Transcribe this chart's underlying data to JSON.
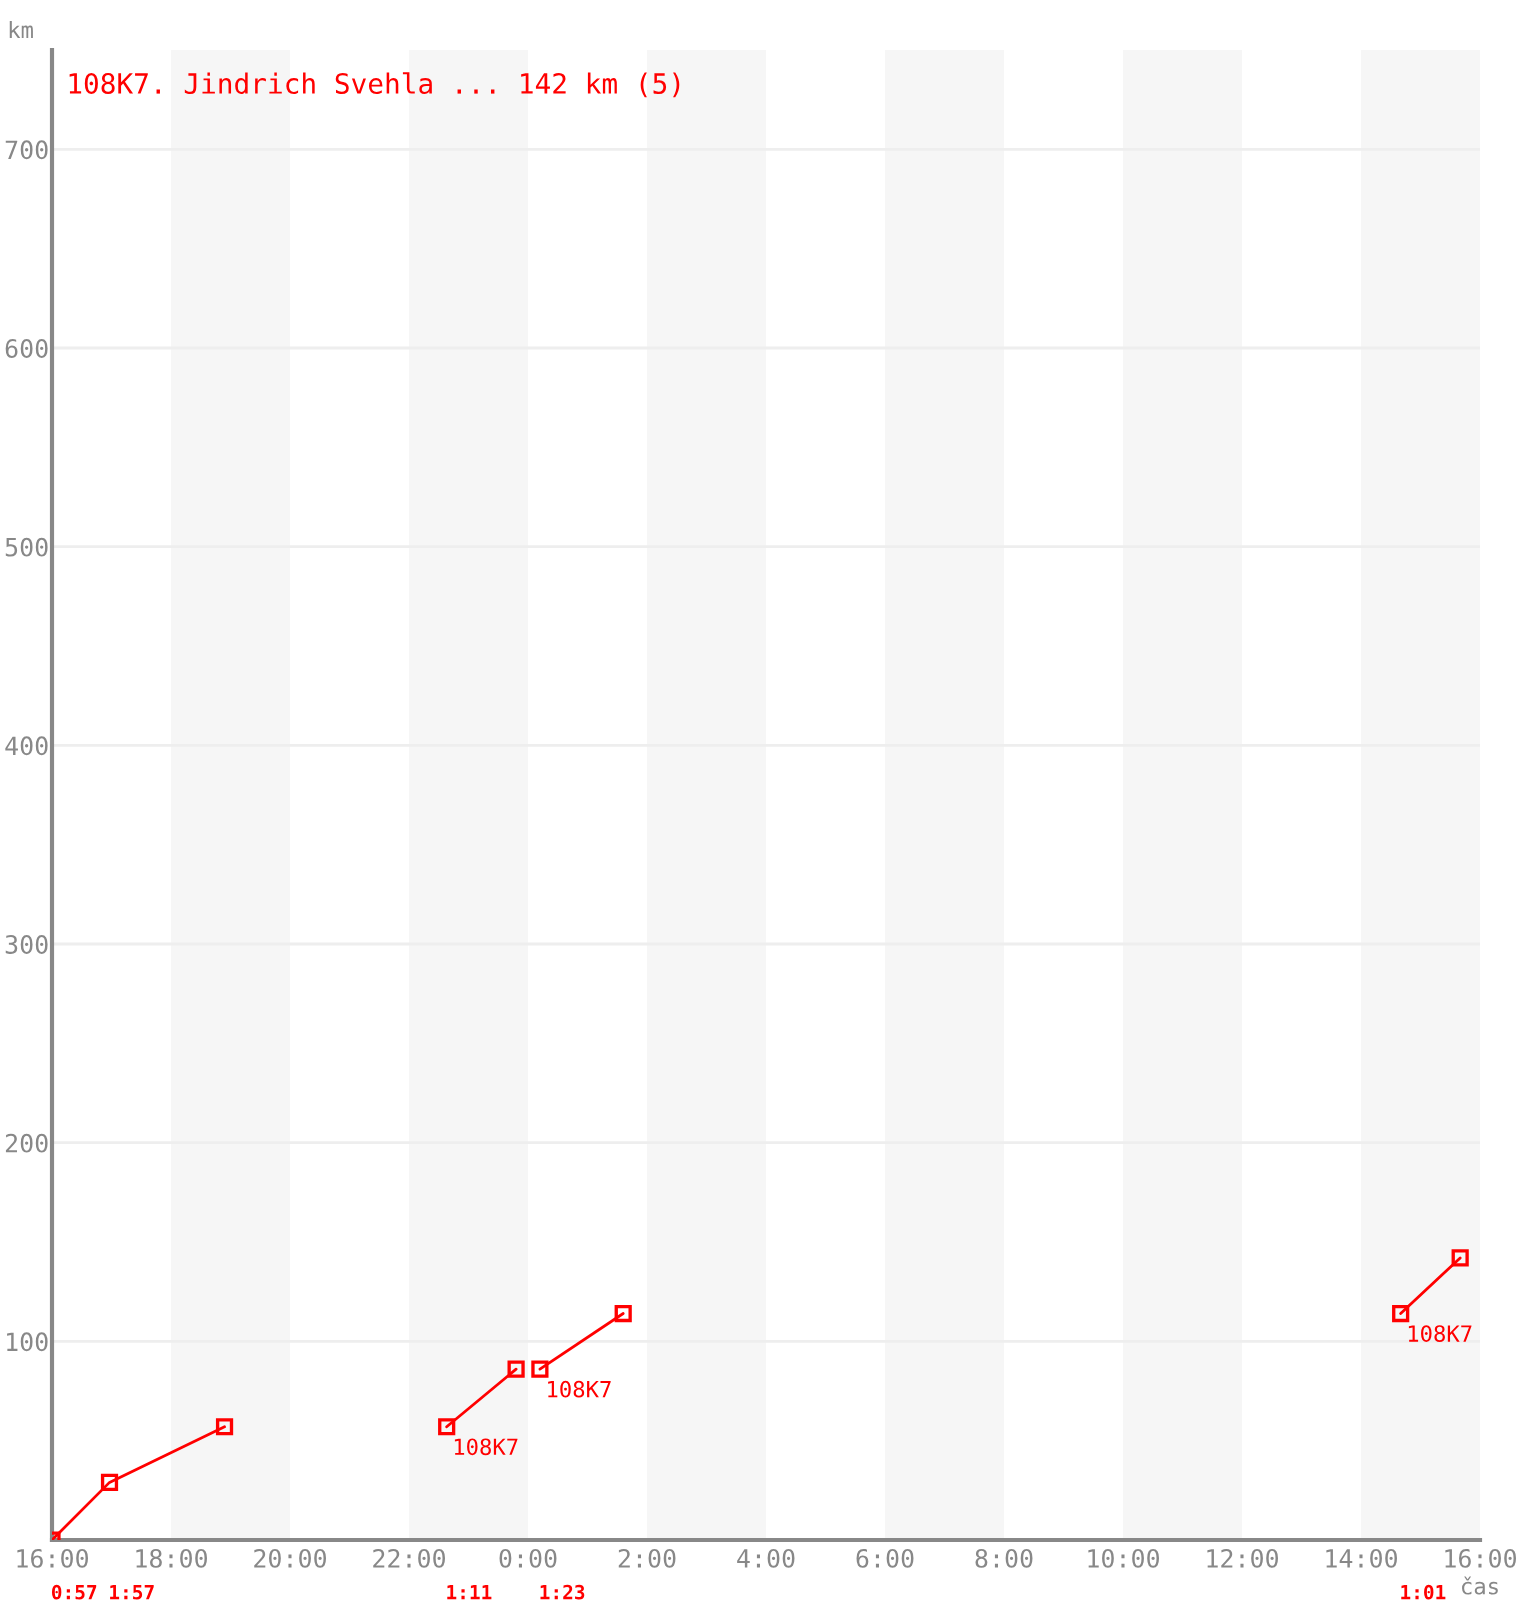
{
  "chart_data": {
    "type": "line",
    "title": "108K7. Jindrich Svehla ... 142 km (5)",
    "xlabel": "čas",
    "ylabel": "km",
    "series": [
      {
        "color": "#ff0000",
        "x": [
          "2000-01-01T16:00",
          "2000-01-01T16:58",
          "2000-01-01T18:54"
        ],
        "values": [
          0,
          29,
          57
        ]
      },
      {
        "color": "#ff0000",
        "x": [
          "2000-01-01T22:38",
          "2000-01-01T23:48"
        ],
        "values": [
          57,
          86
        ]
      },
      {
        "color": "#ff0000",
        "x": [
          "2000-01-02T00:12",
          "2000-01-02T01:36"
        ],
        "values": [
          86,
          114
        ]
      },
      {
        "color": "#ff0000",
        "x": [
          "2000-01-02T14:40",
          "2000-01-02T15:40"
        ],
        "values": [
          114,
          142
        ]
      }
    ],
    "marker": "square",
    "line_style": "solid",
    "grid": "y",
    "legend": false,
    "xlim": [
      "2000-01-01T16:00",
      "2000-01-02T16:00"
    ],
    "xticks": [
      {
        "value": "2000-01-01T16:00",
        "label": "16:00"
      },
      {
        "value": "2000-01-01T18:00",
        "label": "18:00"
      },
      {
        "value": "2000-01-01T20:00",
        "label": "20:00"
      },
      {
        "value": "2000-01-01T22:00",
        "label": "22:00"
      },
      {
        "value": "2000-01-02T00:00",
        "label": "0:00"
      },
      {
        "value": "2000-01-02T02:00",
        "label": "2:00"
      },
      {
        "value": "2000-01-02T04:00",
        "label": "4:00"
      },
      {
        "value": "2000-01-02T06:00",
        "label": "6:00"
      },
      {
        "value": "2000-01-02T08:00",
        "label": "8:00"
      },
      {
        "value": "2000-01-02T10:00",
        "label": "10:00"
      },
      {
        "value": "2000-01-02T12:00",
        "label": "12:00"
      },
      {
        "value": "2000-01-02T14:00",
        "label": "14:00"
      },
      {
        "value": "2000-01-02T16:00",
        "label": "16:00"
      }
    ],
    "ylim": [
      0,
      750
    ],
    "yticks": [
      100,
      200,
      300,
      400,
      500,
      600,
      700
    ],
    "bands": [
      {
        "axis": "x",
        "from": "2000-01-01T18:00",
        "to": "2000-01-01T20:00",
        "color": "#f6f6f6"
      },
      {
        "axis": "x",
        "from": "2000-01-01T22:00",
        "to": "2000-01-02T00:00",
        "color": "#f6f6f6"
      },
      {
        "axis": "x",
        "from": "2000-01-02T02:00",
        "to": "2000-01-02T04:00",
        "color": "#f6f6f6"
      },
      {
        "axis": "x",
        "from": "2000-01-02T06:00",
        "to": "2000-01-02T08:00",
        "color": "#f6f6f6"
      },
      {
        "axis": "x",
        "from": "2000-01-02T10:00",
        "to": "2000-01-02T12:00",
        "color": "#f6f6f6"
      },
      {
        "axis": "x",
        "from": "2000-01-02T14:00",
        "to": "2000-01-02T16:00",
        "color": "#f6f6f6"
      }
    ],
    "annotations": [
      {
        "text": "108K7",
        "x": "2000-01-01T22:38",
        "y": 57
      },
      {
        "text": "108K7",
        "x": "2000-01-02T00:12",
        "y": 86
      },
      {
        "text": "108K7",
        "x": "2000-01-02T14:40",
        "y": 114
      },
      "0:57",
      "1:57",
      "1:11",
      "1:23",
      "1:01"
    ]
  }
}
